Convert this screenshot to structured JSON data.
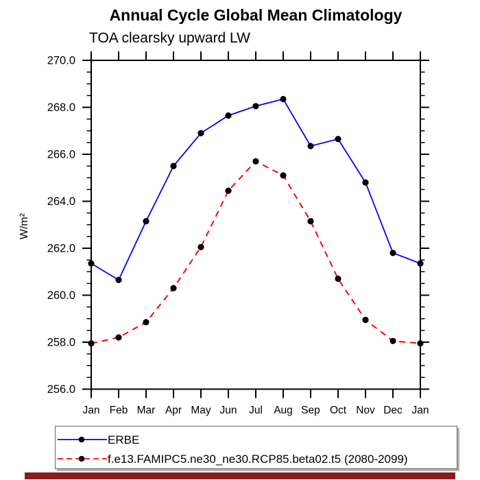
{
  "window": {
    "background": "#ffffff"
  },
  "header": {
    "title": "Annual Cycle Global Mean Climatology",
    "subtitle": "TOA clearsky upward LW"
  },
  "chart_data": {
    "type": "line",
    "title": "Annual Cycle Global Mean Climatology",
    "subtitle": "TOA clearsky upward LW",
    "xlabel": "",
    "ylabel": "W/m²",
    "x_categories": [
      "Jan",
      "Feb",
      "Mar",
      "Apr",
      "May",
      "Jun",
      "Jul",
      "Aug",
      "Sep",
      "Oct",
      "Nov",
      "Dec",
      "Jan"
    ],
    "ylim": [
      256.0,
      270.0
    ],
    "ytick_interval_major": 2.0,
    "ytick_interval_minor": 0.5,
    "ytick_labels": [
      "256.0",
      "258.0",
      "260.0",
      "262.0",
      "264.0",
      "266.0",
      "268.0",
      "270.0"
    ],
    "grid": false,
    "axis_color": "#000000",
    "legend_position": "bottom-left",
    "series": [
      {
        "name": "ERBE",
        "color": "#0000ff",
        "line_style": "solid",
        "marker": "filled-circle",
        "marker_color": "#000000",
        "values": [
          261.35,
          260.65,
          263.15,
          265.5,
          266.9,
          267.65,
          268.05,
          268.35,
          266.35,
          266.65,
          264.8,
          261.8,
          261.35
        ]
      },
      {
        "name": "f.e13.FAMIPC5.ne30_ne30.RCP85.beta02.t5 (2080-2099)",
        "color": "#ff0000",
        "line_style": "dashed",
        "marker": "filled-circle",
        "marker_color": "#000000",
        "values": [
          257.95,
          258.2,
          258.85,
          260.3,
          262.05,
          264.45,
          265.7,
          265.1,
          263.15,
          260.7,
          258.95,
          258.05,
          257.95
        ]
      }
    ]
  },
  "footer_bar": {
    "color": "#8b1a1a"
  }
}
